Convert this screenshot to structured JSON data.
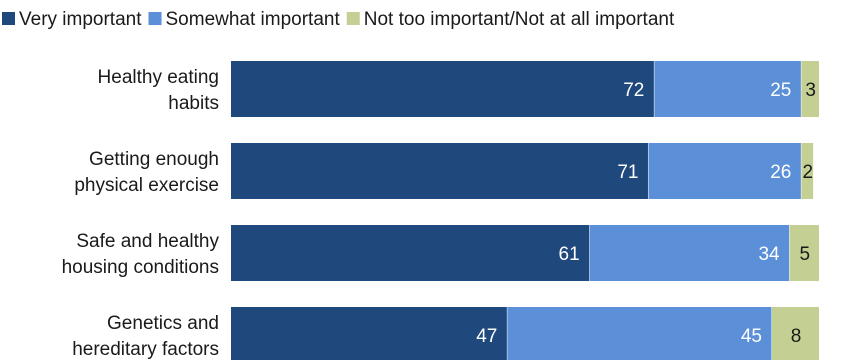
{
  "chart_data": {
    "type": "bar",
    "orientation": "horizontal",
    "stacked": true,
    "title": "",
    "xlabel": "",
    "ylabel": "",
    "xlim": [
      0,
      100
    ],
    "grid": false,
    "legend_position": "top",
    "categories": [
      [
        "Healthy eating",
        "habits"
      ],
      [
        "Getting enough",
        "physical exercise"
      ],
      [
        "Safe and healthy",
        "housing conditions"
      ],
      [
        "Genetics and",
        "hereditary factors"
      ]
    ],
    "series": [
      {
        "name": "Very important",
        "color": "#1f497d",
        "label_color": "#ffffff",
        "values": [
          72,
          71,
          61,
          47
        ]
      },
      {
        "name": "Somewhat important",
        "color": "#5b8fd8",
        "label_color": "#ffffff",
        "values": [
          25,
          26,
          34,
          45
        ]
      },
      {
        "name": "Not too important/Not at all important",
        "color": "#c4cf93",
        "label_color": "#1a1a1a",
        "values": [
          3,
          2,
          5,
          8
        ]
      }
    ]
  }
}
